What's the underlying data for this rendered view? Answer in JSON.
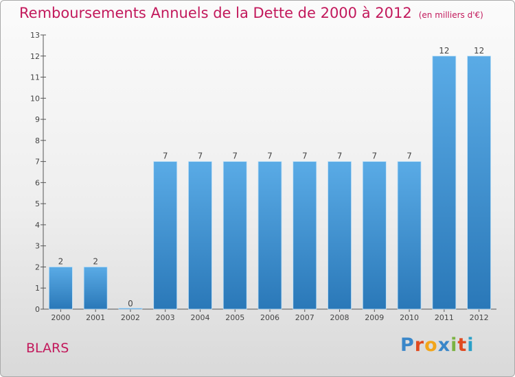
{
  "title": "Remboursements Annuels de la Dette de 2000 à 2012",
  "unit": "(en milliers d'€)",
  "place": "BLARS",
  "brand": {
    "letters": [
      "P",
      "r",
      "o",
      "x",
      "i",
      "t",
      "i"
    ],
    "colors": [
      "#3a87c9",
      "#e04a20",
      "#f2a51a",
      "#3a87c9",
      "#7cb342",
      "#e04a20",
      "#2aa0c8"
    ]
  },
  "colors": {
    "bar_top": "#5aabe6",
    "bar_bottom": "#2a78b8",
    "title": "#c2185b"
  },
  "chart_data": {
    "type": "bar",
    "title": "Remboursements Annuels de la Dette de 2000 à 2012",
    "categories": [
      "2000",
      "2001",
      "2002",
      "2003",
      "2004",
      "2005",
      "2006",
      "2007",
      "2008",
      "2009",
      "2010",
      "2011",
      "2012"
    ],
    "values": [
      2,
      2,
      0,
      7,
      7,
      7,
      7,
      7,
      7,
      7,
      7,
      12,
      12
    ],
    "ylim": [
      0,
      13
    ],
    "yticks": [
      0,
      1,
      2,
      3,
      4,
      5,
      6,
      7,
      8,
      9,
      10,
      11,
      12,
      13
    ],
    "grid": false,
    "legend": "none"
  }
}
